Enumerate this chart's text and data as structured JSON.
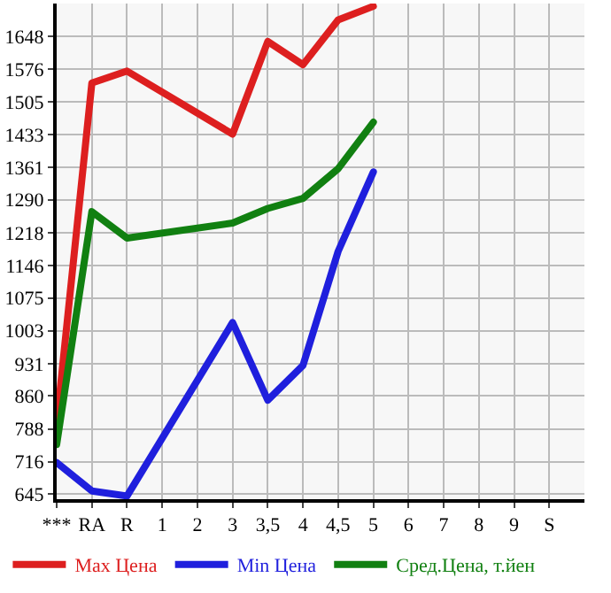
{
  "chart_data": {
    "type": "line",
    "categories": [
      "***",
      "RA",
      "R",
      "1",
      "2",
      "3",
      "3,5",
      "4",
      "4,5",
      "5",
      "6",
      "7",
      "8",
      "9",
      "S"
    ],
    "series": [
      {
        "name": "Max Цена",
        "color": "#dd1f1f",
        "values": [
          800,
          1546,
          1572,
          null,
          null,
          1434,
          1637,
          1586,
          1684,
          1714,
          null,
          null,
          null,
          null,
          null
        ]
      },
      {
        "name": "Min Цена",
        "color": "#1f1fdd",
        "values": [
          714,
          652,
          641,
          null,
          null,
          1021,
          851,
          927,
          1177,
          1351,
          null,
          null,
          null,
          null,
          null
        ]
      },
      {
        "name": "Сред.Цена, т.йен",
        "color": "#118011",
        "values": [
          754,
          1264,
          1206,
          null,
          null,
          1239,
          1271,
          1293,
          1358,
          1460,
          null,
          null,
          null,
          null,
          null
        ]
      }
    ],
    "ylim": [
      634,
      1720
    ],
    "yticks": [
      645,
      716,
      788,
      860,
      931,
      1003,
      1075,
      1146,
      1218,
      1290,
      1361,
      1433,
      1505,
      1576,
      1648
    ],
    "grid": true,
    "legend": "bottom",
    "marker": "none",
    "line_style": "solid"
  }
}
